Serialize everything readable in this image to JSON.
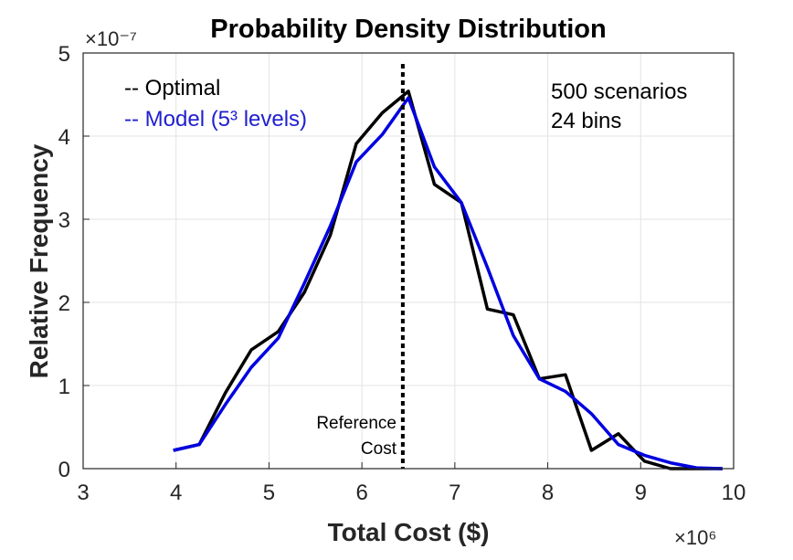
{
  "chart_data": {
    "type": "line",
    "title": "Probability Density Distribution",
    "xlabel": "Total Cost ($)",
    "ylabel": "Relative Frequency",
    "x_multiplier": "×10⁶",
    "y_multiplier": "×10⁻⁷",
    "xlim": [
      3,
      10
    ],
    "ylim": [
      0,
      5
    ],
    "xticks": [
      "3",
      "4",
      "5",
      "6",
      "7",
      "8",
      "9",
      "10"
    ],
    "yticks": [
      "0",
      "1",
      "2",
      "3",
      "4",
      "5"
    ],
    "grid": true,
    "legend_placement": "top-left",
    "x": [
      3.97,
      4.25,
      4.53,
      4.81,
      5.1,
      5.38,
      5.66,
      5.94,
      6.22,
      6.5,
      6.78,
      7.07,
      7.35,
      7.63,
      7.91,
      8.19,
      8.47,
      8.76,
      9.04,
      9.32,
      9.6,
      9.88
    ],
    "series": [
      {
        "name": "-- Optimal",
        "color": "#000000",
        "values": [
          0.22,
          0.29,
          0.91,
          1.43,
          1.65,
          2.12,
          2.81,
          3.91,
          4.28,
          4.54,
          3.42,
          3.2,
          1.92,
          1.85,
          1.08,
          1.13,
          0.22,
          0.42,
          0.09,
          0.0,
          0.0,
          0.0
        ]
      },
      {
        "name": "-- Model (5³ levels)",
        "color": "#0000e0",
        "values": [
          0.22,
          0.29,
          0.77,
          1.22,
          1.57,
          2.23,
          2.92,
          3.69,
          4.02,
          4.46,
          3.63,
          3.2,
          2.42,
          1.6,
          1.08,
          0.93,
          0.66,
          0.29,
          0.16,
          0.07,
          0.01,
          0.0
        ]
      }
    ],
    "reference_line": {
      "x": 6.44,
      "label_line1": "Reference",
      "label_line2": "Cost",
      "style": "dotted"
    },
    "annotations": [
      "500 scenarios",
      "24 bins"
    ]
  }
}
